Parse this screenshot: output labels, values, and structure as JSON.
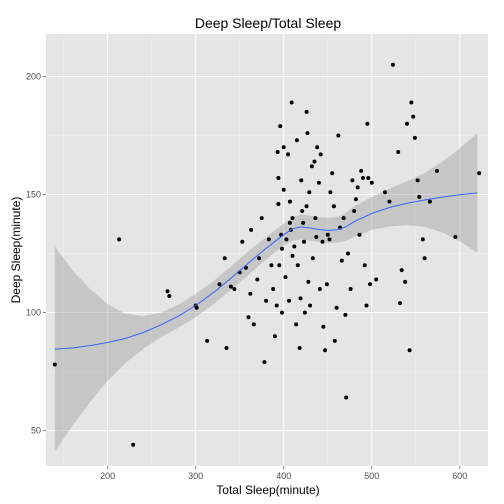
{
  "chart_data": {
    "type": "scatter",
    "title": "Deep Sleep/Total Sleep",
    "xlabel": "Total Sleep(minute)",
    "ylabel": "Deep Sleep(minute)",
    "xlim": [
      130,
      632
    ],
    "ylim": [
      35,
      218
    ],
    "xticks": [
      200,
      300,
      400,
      500,
      600
    ],
    "yticks": [
      50,
      100,
      150,
      200
    ],
    "xtick_labels": [
      "200",
      "300",
      "400",
      "500",
      "600"
    ],
    "ytick_labels": [
      "50",
      "100",
      "150",
      "200"
    ],
    "grid": true,
    "colors": {
      "panel": "#e5e5e5",
      "grid_major": "#ffffff",
      "grid_minor": "#f2f2f2",
      "point": "#000000",
      "smooth_line": "#3366ff",
      "ribbon": "#999999"
    },
    "points": [
      [
        140,
        78
      ],
      [
        213,
        131
      ],
      [
        229,
        44
      ],
      [
        268,
        109
      ],
      [
        270,
        107
      ],
      [
        300,
        103
      ],
      [
        301,
        102
      ],
      [
        313,
        88
      ],
      [
        327,
        112
      ],
      [
        333,
        123
      ],
      [
        335,
        85
      ],
      [
        340,
        111
      ],
      [
        344,
        110
      ],
      [
        350,
        117
      ],
      [
        353,
        130
      ],
      [
        357,
        119
      ],
      [
        360,
        98
      ],
      [
        362,
        108
      ],
      [
        363,
        135
      ],
      [
        366,
        95
      ],
      [
        370,
        114
      ],
      [
        372,
        123
      ],
      [
        375,
        140
      ],
      [
        378,
        79
      ],
      [
        380,
        105
      ],
      [
        383,
        131
      ],
      [
        386,
        120
      ],
      [
        388,
        110
      ],
      [
        390,
        90
      ],
      [
        392,
        103
      ],
      [
        393,
        168
      ],
      [
        394,
        157
      ],
      [
        394,
        146
      ],
      [
        395,
        120
      ],
      [
        396,
        179
      ],
      [
        397,
        133
      ],
      [
        398,
        127
      ],
      [
        398,
        100
      ],
      [
        400,
        170
      ],
      [
        400,
        152
      ],
      [
        402,
        115
      ],
      [
        403,
        131
      ],
      [
        405,
        167
      ],
      [
        406,
        105
      ],
      [
        407,
        147
      ],
      [
        407,
        138
      ],
      [
        408,
        135
      ],
      [
        409,
        189
      ],
      [
        410,
        140
      ],
      [
        410,
        124
      ],
      [
        412,
        128
      ],
      [
        414,
        95
      ],
      [
        415,
        173
      ],
      [
        416,
        120
      ],
      [
        418,
        85
      ],
      [
        419,
        106
      ],
      [
        420,
        156
      ],
      [
        421,
        143
      ],
      [
        422,
        138
      ],
      [
        423,
        130
      ],
      [
        424,
        100
      ],
      [
        426,
        185
      ],
      [
        426,
        145
      ],
      [
        427,
        176
      ],
      [
        428,
        113
      ],
      [
        429,
        151
      ],
      [
        430,
        103
      ],
      [
        432,
        162
      ],
      [
        433,
        123
      ],
      [
        435,
        164
      ],
      [
        436,
        140
      ],
      [
        437,
        132
      ],
      [
        438,
        170
      ],
      [
        440,
        155
      ],
      [
        441,
        110
      ],
      [
        442,
        167
      ],
      [
        444,
        130
      ],
      [
        445,
        94
      ],
      [
        447,
        84
      ],
      [
        449,
        112
      ],
      [
        450,
        133
      ],
      [
        452,
        131
      ],
      [
        453,
        151
      ],
      [
        455,
        159
      ],
      [
        457,
        145
      ],
      [
        458,
        88
      ],
      [
        460,
        102
      ],
      [
        462,
        175
      ],
      [
        464,
        136
      ],
      [
        466,
        122
      ],
      [
        468,
        140
      ],
      [
        470,
        99
      ],
      [
        471,
        64
      ],
      [
        473,
        125
      ],
      [
        476,
        110
      ],
      [
        478,
        156
      ],
      [
        480,
        143
      ],
      [
        482,
        148
      ],
      [
        484,
        153
      ],
      [
        486,
        133
      ],
      [
        488,
        160
      ],
      [
        490,
        157
      ],
      [
        492,
        120
      ],
      [
        494,
        103
      ],
      [
        495,
        180
      ],
      [
        496,
        157
      ],
      [
        498,
        112
      ],
      [
        500,
        155
      ],
      [
        505,
        114
      ],
      [
        515,
        151
      ],
      [
        520,
        147
      ],
      [
        524,
        205
      ],
      [
        530,
        168
      ],
      [
        532,
        104
      ],
      [
        534,
        118
      ],
      [
        538,
        113
      ],
      [
        540,
        180
      ],
      [
        543,
        84
      ],
      [
        545,
        189
      ],
      [
        547,
        183
      ],
      [
        549,
        174
      ],
      [
        552,
        156
      ],
      [
        554,
        149
      ],
      [
        558,
        131
      ],
      [
        560,
        123
      ],
      [
        566,
        147
      ],
      [
        574,
        160
      ],
      [
        595,
        132
      ],
      [
        622,
        159
      ]
    ],
    "smooth": {
      "x": [
        140,
        160,
        180,
        200,
        220,
        240,
        260,
        280,
        300,
        320,
        340,
        360,
        380,
        400,
        410,
        420,
        430,
        440,
        450,
        460,
        470,
        480,
        500,
        520,
        540,
        560,
        580,
        600,
        620
      ],
      "y": [
        84.5,
        85,
        86,
        87.3,
        89,
        91.5,
        94.7,
        98.4,
        103,
        108.4,
        114.5,
        121,
        127.2,
        133,
        135.5,
        136.3,
        135.8,
        135.2,
        134.8,
        135,
        136.2,
        138.5,
        142,
        144.5,
        146.3,
        147.7,
        148.9,
        149.9,
        150.7
      ],
      "lower": [
        41,
        52,
        62,
        71,
        78.5,
        84.5,
        89.5,
        93.5,
        98,
        103.5,
        109.5,
        116,
        122.5,
        128.3,
        130.5,
        131,
        130.5,
        130,
        129.5,
        129.5,
        130.3,
        132,
        135,
        136.5,
        137,
        136.3,
        134,
        130.2,
        125.3
      ],
      "upper": [
        128,
        118,
        110,
        103.6,
        99.5,
        98.5,
        99.9,
        103.3,
        108,
        113.3,
        119.5,
        126,
        131.9,
        137.7,
        140.5,
        141.6,
        141.1,
        140.4,
        140.1,
        140.5,
        142.1,
        145,
        149,
        152.5,
        155.6,
        159.1,
        163.8,
        169.6,
        176.1
      ]
    }
  }
}
